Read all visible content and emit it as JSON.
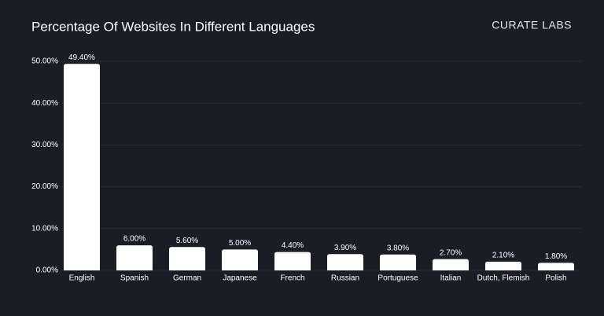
{
  "chart_data": {
    "type": "bar",
    "title": "Percentage Of Websites In Different Languages",
    "brand": "CURATE LABS",
    "categories": [
      "English",
      "Spanish",
      "German",
      "Japanese",
      "French",
      "Russian",
      "Portuguese",
      "Italian",
      "Dutch, Flemish",
      "Polish"
    ],
    "values": [
      49.4,
      6.0,
      5.6,
      5.0,
      4.4,
      3.9,
      3.8,
      2.7,
      2.1,
      1.8
    ],
    "value_labels": [
      "49.40%",
      "6.00%",
      "5.60%",
      "5.00%",
      "4.40%",
      "3.90%",
      "3.80%",
      "2.70%",
      "2.10%",
      "1.80%"
    ],
    "color": "#ffffff",
    "ylim": [
      0,
      50
    ],
    "yticks": [
      {
        "value": 0,
        "label": "0.00%"
      },
      {
        "value": 10,
        "label": "10.00%"
      },
      {
        "value": 20,
        "label": "20.00%"
      },
      {
        "value": 30,
        "label": "30.00%"
      },
      {
        "value": 40,
        "label": "40.00%"
      },
      {
        "value": 50,
        "label": "50.00%"
      }
    ],
    "grid": true
  }
}
